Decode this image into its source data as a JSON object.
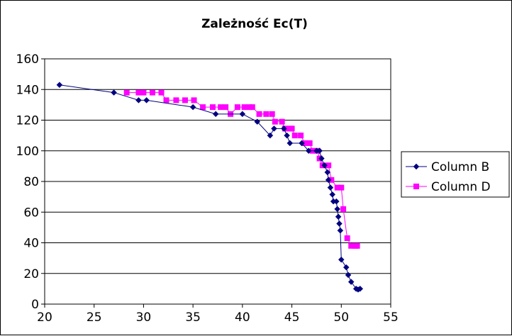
{
  "chart_data": {
    "type": "scatter",
    "title": "Zależność Ec(T)",
    "xlabel": "",
    "ylabel": "",
    "xlim": [
      20,
      55
    ],
    "ylim": [
      0,
      160
    ],
    "x_ticks": [
      20,
      25,
      30,
      35,
      40,
      45,
      50,
      55
    ],
    "y_ticks": [
      0,
      20,
      40,
      60,
      80,
      100,
      120,
      140,
      160
    ],
    "grid": "horizontal",
    "legend": "right",
    "series": [
      {
        "name": "Column B",
        "color": "#000080",
        "marker": "diamond",
        "line": true,
        "points": [
          [
            21.5,
            143
          ],
          [
            27,
            138
          ],
          [
            29.5,
            133
          ],
          [
            30.3,
            133
          ],
          [
            35,
            128.5
          ],
          [
            37.3,
            124
          ],
          [
            40,
            124
          ],
          [
            41.5,
            119
          ],
          [
            42.8,
            110
          ],
          [
            43.2,
            114.5
          ],
          [
            44.2,
            114.5
          ],
          [
            44.5,
            110
          ],
          [
            44.8,
            105
          ],
          [
            46,
            105
          ],
          [
            46.7,
            100
          ],
          [
            47.5,
            100
          ],
          [
            47.8,
            100
          ],
          [
            48,
            95
          ],
          [
            48.3,
            90.5
          ],
          [
            48.6,
            86
          ],
          [
            48.7,
            81
          ],
          [
            48.9,
            76
          ],
          [
            49.1,
            71.5
          ],
          [
            49.2,
            67
          ],
          [
            49.5,
            67
          ],
          [
            49.6,
            62
          ],
          [
            49.7,
            57
          ],
          [
            49.8,
            52.5
          ],
          [
            49.9,
            48
          ],
          [
            50,
            29
          ],
          [
            50.5,
            24
          ],
          [
            50.7,
            19
          ],
          [
            51,
            14.5
          ],
          [
            51.5,
            10
          ],
          [
            51.7,
            9.5
          ],
          [
            51.9,
            10
          ]
        ]
      },
      {
        "name": "Column D",
        "color": "#ff00ff",
        "marker": "square",
        "line": true,
        "points": [
          [
            28.3,
            138
          ],
          [
            29.5,
            138
          ],
          [
            30,
            138
          ],
          [
            30.9,
            138
          ],
          [
            31.8,
            138
          ],
          [
            32.3,
            133
          ],
          [
            33.3,
            133
          ],
          [
            34.2,
            133
          ],
          [
            35.1,
            133
          ],
          [
            36,
            128.5
          ],
          [
            37,
            128.5
          ],
          [
            37.8,
            128.5
          ],
          [
            38.3,
            128.5
          ],
          [
            38.8,
            124
          ],
          [
            39.5,
            128.5
          ],
          [
            40.2,
            128.5
          ],
          [
            40.7,
            128.5
          ],
          [
            41,
            128.5
          ],
          [
            41.7,
            124
          ],
          [
            42.4,
            124
          ],
          [
            43,
            124
          ],
          [
            43.3,
            119
          ],
          [
            44,
            119
          ],
          [
            44.3,
            114.5
          ],
          [
            44.8,
            114.5
          ],
          [
            45,
            114.5
          ],
          [
            45.3,
            110
          ],
          [
            45.9,
            110
          ],
          [
            46.3,
            105
          ],
          [
            46.8,
            105
          ],
          [
            47.1,
            100
          ],
          [
            47.6,
            100
          ],
          [
            47.8,
            95
          ],
          [
            48.1,
            90.5
          ],
          [
            48.7,
            90.5
          ],
          [
            49,
            81
          ],
          [
            49.6,
            76
          ],
          [
            50,
            76
          ],
          [
            50.2,
            62
          ],
          [
            50.6,
            43
          ],
          [
            51,
            38
          ],
          [
            51.4,
            38
          ],
          [
            51.6,
            38
          ]
        ]
      }
    ]
  }
}
